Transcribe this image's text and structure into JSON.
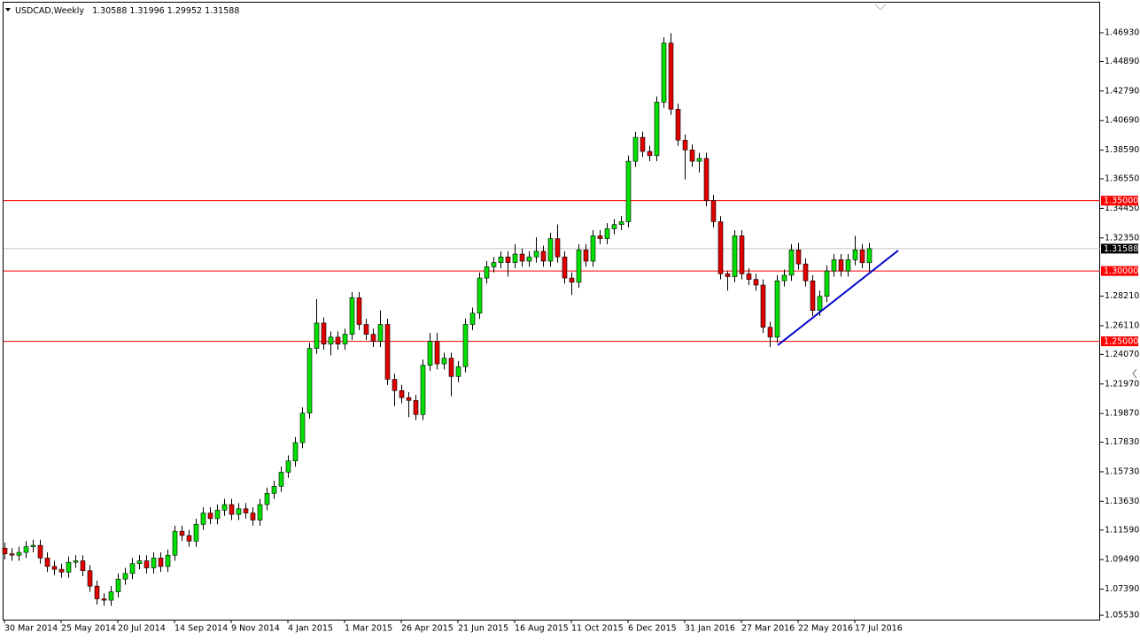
{
  "chart_data": {
    "type": "candlestick",
    "title": "USDCAD,Weekly",
    "categories": [
      "30 Mar 2014",
      null,
      null,
      null,
      null,
      null,
      null,
      null,
      "25 May 2014",
      null,
      null,
      null,
      null,
      null,
      null,
      null,
      "20 Jul 2014",
      null,
      null,
      null,
      null,
      null,
      null,
      null,
      "14 Sep 2014",
      null,
      null,
      null,
      null,
      null,
      null,
      null,
      "9 Nov 2014",
      null,
      null,
      null,
      null,
      null,
      null,
      null,
      "4 Jan 2015",
      null,
      null,
      null,
      null,
      null,
      null,
      null,
      "1 Mar 2015",
      null,
      null,
      null,
      null,
      null,
      null,
      null,
      "26 Apr 2015",
      null,
      null,
      null,
      null,
      null,
      null,
      null,
      "21 Jun 2015",
      null,
      null,
      null,
      null,
      null,
      null,
      null,
      "16 Aug 2015",
      null,
      null,
      null,
      null,
      null,
      null,
      null,
      "11 Oct 2015",
      null,
      null,
      null,
      null,
      null,
      null,
      null,
      "6 Dec 2015",
      null,
      null,
      null,
      null,
      null,
      null,
      null,
      "31 Jan 2016",
      null,
      null,
      null,
      null,
      null,
      null,
      null,
      "27 Mar 2016",
      null,
      null,
      null,
      null,
      null,
      null,
      null,
      "22 May 2016",
      null,
      null,
      null,
      null,
      null,
      null,
      null,
      "17 Jul 2016",
      null,
      null
    ],
    "open": [
      1.103,
      1.099,
      1.098,
      1.1,
      1.104,
      1.105,
      1.096,
      1.09,
      1.088,
      1.086,
      1.093,
      1.094,
      1.087,
      1.076,
      1.067,
      1.066,
      1.072,
      1.081,
      1.085,
      1.092,
      1.094,
      1.089,
      1.096,
      1.09,
      1.098,
      1.115,
      1.112,
      1.108,
      1.12,
      1.128,
      1.124,
      1.13,
      1.134,
      1.127,
      1.131,
      1.128,
      1.123,
      1.134,
      1.142,
      1.147,
      1.157,
      1.165,
      1.178,
      1.199,
      1.245,
      1.263,
      1.248,
      1.253,
      1.248,
      1.255,
      1.281,
      1.262,
      1.255,
      1.25,
      1.262,
      1.223,
      1.215,
      1.21,
      1.208,
      1.198,
      1.233,
      1.25,
      1.234,
      1.238,
      1.225,
      1.232,
      1.262,
      1.27,
      1.295,
      1.303,
      1.306,
      1.31,
      1.306,
      1.312,
      1.307,
      1.31,
      1.314,
      1.307,
      1.323,
      1.31,
      1.295,
      1.292,
      1.315,
      1.307,
      1.325,
      1.323,
      1.33,
      1.333,
      1.335,
      1.378,
      1.395,
      1.385,
      1.382,
      1.42,
      1.462,
      1.415,
      1.393,
      1.386,
      1.378,
      1.38,
      1.35,
      1.335,
      1.298,
      1.296,
      1.325,
      1.298,
      1.294,
      1.29,
      1.26,
      1.253,
      1.293,
      1.297,
      1.315,
      1.305,
      1.293,
      1.272,
      1.282,
      1.3,
      1.308,
      1.3,
      1.308,
      1.315,
      1.30588
    ],
    "high": [
      1.107,
      1.103,
      1.104,
      1.108,
      1.109,
      1.109,
      1.1,
      1.094,
      1.092,
      1.097,
      1.098,
      1.098,
      1.091,
      1.08,
      1.071,
      1.076,
      1.085,
      1.089,
      1.096,
      1.098,
      1.098,
      1.1,
      1.1,
      1.102,
      1.119,
      1.119,
      1.116,
      1.124,
      1.132,
      1.132,
      1.134,
      1.138,
      1.138,
      1.135,
      1.135,
      1.132,
      1.138,
      1.146,
      1.151,
      1.161,
      1.169,
      1.182,
      1.203,
      1.249,
      1.28,
      1.267,
      1.257,
      1.257,
      1.259,
      1.285,
      1.285,
      1.266,
      1.259,
      1.272,
      1.266,
      1.227,
      1.219,
      1.214,
      1.212,
      1.237,
      1.256,
      1.256,
      1.242,
      1.242,
      1.236,
      1.266,
      1.274,
      1.299,
      1.307,
      1.31,
      1.314,
      1.314,
      1.319,
      1.316,
      1.314,
      1.324,
      1.318,
      1.327,
      1.333,
      1.314,
      1.299,
      1.319,
      1.319,
      1.329,
      1.329,
      1.334,
      1.337,
      1.339,
      1.382,
      1.399,
      1.399,
      1.389,
      1.424,
      1.466,
      1.469,
      1.419,
      1.397,
      1.39,
      1.384,
      1.384,
      1.354,
      1.339,
      1.3,
      1.329,
      1.329,
      1.302,
      1.298,
      1.294,
      1.264,
      1.297,
      1.301,
      1.319,
      1.32,
      1.309,
      1.297,
      1.286,
      1.304,
      1.312,
      1.312,
      1.312,
      1.325,
      1.319,
      1.31996
    ],
    "low": [
      1.095,
      1.094,
      1.094,
      1.096,
      1.1,
      1.092,
      1.086,
      1.084,
      1.082,
      1.082,
      1.089,
      1.083,
      1.072,
      1.063,
      1.062,
      1.062,
      1.068,
      1.077,
      1.081,
      1.088,
      1.085,
      1.085,
      1.086,
      1.086,
      1.094,
      1.108,
      1.104,
      1.104,
      1.116,
      1.12,
      1.12,
      1.126,
      1.123,
      1.123,
      1.124,
      1.119,
      1.119,
      1.13,
      1.138,
      1.143,
      1.153,
      1.161,
      1.174,
      1.195,
      1.241,
      1.244,
      1.24,
      1.244,
      1.244,
      1.251,
      1.258,
      1.251,
      1.246,
      1.246,
      1.219,
      1.204,
      1.206,
      1.196,
      1.194,
      1.194,
      1.229,
      1.23,
      1.23,
      1.211,
      1.221,
      1.228,
      1.258,
      1.266,
      1.291,
      1.299,
      1.302,
      1.296,
      1.302,
      1.303,
      1.303,
      1.306,
      1.303,
      1.303,
      1.306,
      1.291,
      1.283,
      1.288,
      1.303,
      1.303,
      1.319,
      1.319,
      1.326,
      1.329,
      1.331,
      1.374,
      1.381,
      1.378,
      1.378,
      1.416,
      1.411,
      1.389,
      1.365,
      1.374,
      1.37,
      1.346,
      1.331,
      1.294,
      1.286,
      1.292,
      1.294,
      1.29,
      1.286,
      1.256,
      1.246,
      1.249,
      1.289,
      1.293,
      1.301,
      1.289,
      1.268,
      1.268,
      1.278,
      1.296,
      1.296,
      1.296,
      1.304,
      1.302,
      1.29952
    ],
    "close": [
      1.099,
      1.098,
      1.1,
      1.104,
      1.105,
      1.096,
      1.09,
      1.088,
      1.086,
      1.093,
      1.094,
      1.087,
      1.076,
      1.067,
      1.066,
      1.072,
      1.081,
      1.085,
      1.092,
      1.094,
      1.089,
      1.096,
      1.09,
      1.098,
      1.115,
      1.112,
      1.108,
      1.12,
      1.128,
      1.124,
      1.13,
      1.134,
      1.127,
      1.131,
      1.128,
      1.123,
      1.134,
      1.142,
      1.147,
      1.157,
      1.165,
      1.178,
      1.199,
      1.245,
      1.263,
      1.248,
      1.253,
      1.248,
      1.255,
      1.281,
      1.262,
      1.255,
      1.25,
      1.262,
      1.223,
      1.215,
      1.21,
      1.208,
      1.198,
      1.233,
      1.25,
      1.234,
      1.238,
      1.225,
      1.232,
      1.262,
      1.27,
      1.295,
      1.303,
      1.306,
      1.31,
      1.306,
      1.312,
      1.307,
      1.31,
      1.314,
      1.307,
      1.323,
      1.31,
      1.295,
      1.292,
      1.315,
      1.307,
      1.325,
      1.323,
      1.33,
      1.333,
      1.335,
      1.378,
      1.395,
      1.385,
      1.382,
      1.42,
      1.462,
      1.415,
      1.393,
      1.386,
      1.378,
      1.38,
      1.35,
      1.335,
      1.298,
      1.296,
      1.325,
      1.298,
      1.294,
      1.29,
      1.26,
      1.253,
      1.293,
      1.297,
      1.315,
      1.305,
      1.293,
      1.272,
      1.282,
      1.3,
      1.308,
      1.3,
      1.308,
      1.315,
      1.30588,
      1.31588
    ],
    "up_color": "#00e000",
    "down_color": "#e00000",
    "ylim": [
      1.0522,
      1.4926
    ],
    "yticks": [
      {
        "value": 1.4693,
        "label": "1.46930"
      },
      {
        "value": 1.4489,
        "label": "1.44890"
      },
      {
        "value": 1.4279,
        "label": "1.42790"
      },
      {
        "value": 1.4069,
        "label": "1.40690"
      },
      {
        "value": 1.3859,
        "label": "1.38590"
      },
      {
        "value": 1.3655,
        "label": "1.36550"
      },
      {
        "value": 1.3445,
        "label": "1.34450"
      },
      {
        "value": 1.3235,
        "label": "1.32350"
      },
      {
        "value": 1.2821,
        "label": "1.28210"
      },
      {
        "value": 1.2611,
        "label": "1.26110"
      },
      {
        "value": 1.2407,
        "label": "1.24070"
      },
      {
        "value": 1.2197,
        "label": "1.21970"
      },
      {
        "value": 1.1987,
        "label": "1.19870"
      },
      {
        "value": 1.1783,
        "label": "1.17830"
      },
      {
        "value": 1.1573,
        "label": "1.15730"
      },
      {
        "value": 1.1363,
        "label": "1.13630"
      },
      {
        "value": 1.1159,
        "label": "1.11590"
      },
      {
        "value": 1.0949,
        "label": "1.09490"
      },
      {
        "value": 1.0739,
        "label": "1.07390"
      },
      {
        "value": 1.0553,
        "label": "1.05530"
      }
    ],
    "levels": [
      {
        "value": 1.35,
        "label": "1.35000"
      },
      {
        "value": 1.3,
        "label": "1.30000"
      },
      {
        "value": 1.25,
        "label": "1.25000"
      }
    ],
    "level_color": "#ff0000",
    "grid": false
  }
}
